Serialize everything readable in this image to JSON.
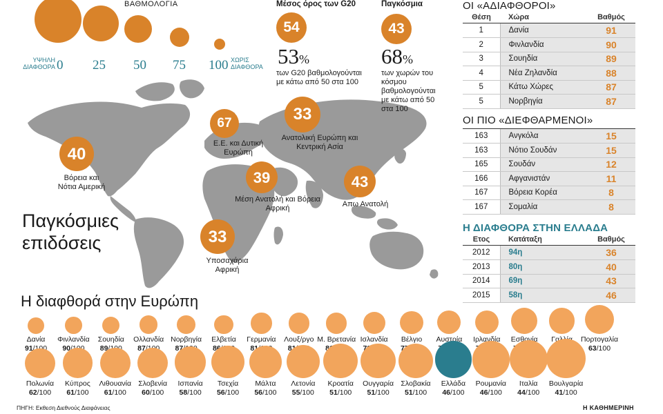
{
  "legend": {
    "title": "ΒΑΘΜΟΛΟΓΙΑ",
    "left_label": "ΥΨΗΛΗ ΔΙΑΦΘΟΡΑ",
    "right_label": "ΧΩΡΙΣ ΔΙΑΦΘΟΡΑ",
    "scale": [
      "0",
      "25",
      "50",
      "75",
      "100"
    ]
  },
  "g20": {
    "label": "Μέσος όρος των G20",
    "score": "54",
    "percent": "53",
    "percent_sign": "%",
    "desc": "των G20 βαθμολογούνται με κάτω από 50 στα 100"
  },
  "global": {
    "label": "Παγκόσμια",
    "score": "43",
    "percent": "68",
    "percent_sign": "%",
    "desc": "των χωρών του κόσμου βαθμολογούνται με κάτω από 50 στα 100"
  },
  "map_title": [
    "Παγκόσμιες",
    "επιδόσεις"
  ],
  "regions": [
    {
      "name": "Βόρεια και Νότια Αμερική",
      "score": "40"
    },
    {
      "name": "Ε.Ε. και Δυτική Ευρώπη",
      "score": "67"
    },
    {
      "name": "Ανατολική Ευρώπη και Κεντρική Ασία",
      "score": "33"
    },
    {
      "name": "Μέση Ανατολή και Βόρεια Αφρική",
      "score": "39"
    },
    {
      "name": "Απω Ανατολή",
      "score": "43"
    },
    {
      "name": "Υποσαχάρια Αφρική",
      "score": "33"
    }
  ],
  "least_corrupt": {
    "title": "ΟΙ «ΑΔΙΑΦΘΟΡΟΙ»",
    "headers": [
      "Θέση",
      "Χώρα",
      "Βαθμός"
    ],
    "rows": [
      [
        "1",
        "Δανία",
        "91"
      ],
      [
        "2",
        "Φινλανδία",
        "90"
      ],
      [
        "3",
        "Σουηδία",
        "89"
      ],
      [
        "4",
        "Νέα Ζηλανδία",
        "88"
      ],
      [
        "5",
        "Κάτω Χώρες",
        "87"
      ],
      [
        "5",
        "Νορβηγία",
        "87"
      ]
    ]
  },
  "most_corrupt": {
    "title": "ΟΙ ΠΙΟ «ΔΙΕΦΘΑΡΜΕΝΟΙ»",
    "rows": [
      [
        "163",
        "Ανγκόλα",
        "15"
      ],
      [
        "163",
        "Νότιο Σουδάν",
        "15"
      ],
      [
        "165",
        "Σουδάν",
        "12"
      ],
      [
        "166",
        "Αφγανιστάν",
        "11"
      ],
      [
        "167",
        "Βόρεια Κορέα",
        "8"
      ],
      [
        "167",
        "Σομαλία",
        "8"
      ]
    ]
  },
  "greece": {
    "title": "Η ΔΙΑΦΘΟΡΑ ΣΤΗΝ ΕΛΛΑΔΑ",
    "headers": [
      "Ετος",
      "Κατάταξη",
      "Βαθμός"
    ],
    "rows": [
      [
        "2012",
        "94η",
        "36"
      ],
      [
        "2013",
        "80η",
        "40"
      ],
      [
        "2014",
        "69η",
        "43"
      ],
      [
        "2015",
        "58η",
        "46"
      ]
    ]
  },
  "europe_title": "Η διαφθορά στην Ευρώπη",
  "score_suffix": "/100",
  "chart_data": {
    "type": "bubble",
    "title": "Η διαφθορά στην Ευρώπη",
    "scale": [
      0,
      100
    ],
    "highlight": "Ελλάδα",
    "colors": {
      "default": "#f2a55c",
      "highlight": "#2a7d8e"
    },
    "categories": [
      "Δανία",
      "Φινλανδία",
      "Σουηδία",
      "Ολλανδία",
      "Νορβηγία",
      "Ελβετία",
      "Γερμανία",
      "Λουξ/ργο",
      "Μ. Βρετανία",
      "Ισλανδία",
      "Βέλγιο",
      "Αυστρία",
      "Ιρλανδία",
      "Εσθονία",
      "Γαλλία",
      "Πορτογαλία",
      "Πολωνία",
      "Κύπρος",
      "Λιθουανία",
      "Σλοβενία",
      "Ισπανία",
      "Τσεχία",
      "Μάλτα",
      "Λετονία",
      "Κροατία",
      "Ουγγαρία",
      "Σλοβακία",
      "Ελλάδα",
      "Ρουμανία",
      "Ιταλία",
      "Βουλγαρία"
    ],
    "values": [
      91,
      90,
      89,
      87,
      87,
      86,
      81,
      81,
      81,
      79,
      77,
      76,
      75,
      70,
      70,
      63,
      62,
      61,
      61,
      60,
      58,
      56,
      56,
      55,
      51,
      51,
      51,
      46,
      46,
      44,
      41
    ]
  },
  "source": "ΠΗΓΗ: Εκθεση Διεθνούς Διαφάνειας",
  "brand": "Η ΚΑΘΗΜΕΡΙΝΗ"
}
